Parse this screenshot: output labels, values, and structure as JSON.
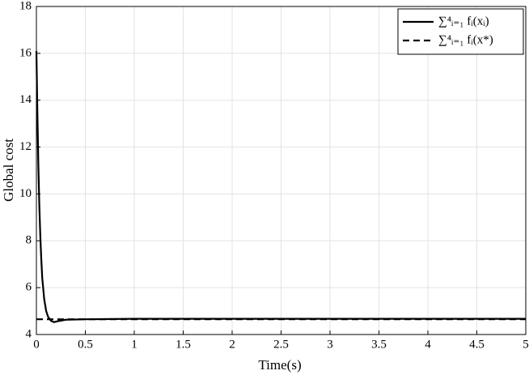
{
  "chart_data": {
    "type": "line",
    "xlabel": "Time(s)",
    "ylabel": "Global cost",
    "xlim": [
      0,
      5
    ],
    "ylim": [
      4,
      18
    ],
    "xticks": [
      0,
      0.5,
      1,
      1.5,
      2,
      2.5,
      3,
      3.5,
      4,
      4.5,
      5
    ],
    "yticks": [
      4,
      6,
      8,
      10,
      12,
      14,
      16,
      18
    ],
    "grid": true,
    "legend": "upper-right",
    "series": [
      {
        "name": "∑⁴ᵢ₌₁ fᵢ(xᵢ)",
        "color": "#000000",
        "dash": "solid",
        "x": [
          0,
          0.01,
          0.02,
          0.03,
          0.04,
          0.05,
          0.06,
          0.08,
          0.1,
          0.12,
          0.15,
          0.18,
          0.22,
          0.3,
          0.5,
          1,
          2,
          3,
          4,
          5
        ],
        "values": [
          16.1,
          13.5,
          11.2,
          9.5,
          8.2,
          7.2,
          6.4,
          5.5,
          5.0,
          4.75,
          4.58,
          4.53,
          4.57,
          4.63,
          4.65,
          4.67,
          4.67,
          4.67,
          4.67,
          4.67
        ]
      },
      {
        "name": "∑⁴ᵢ₌₁ fᵢ(x*)",
        "color": "#000000",
        "dash": "dashed",
        "x": [
          0,
          5
        ],
        "values": [
          4.65,
          4.65
        ]
      }
    ]
  }
}
